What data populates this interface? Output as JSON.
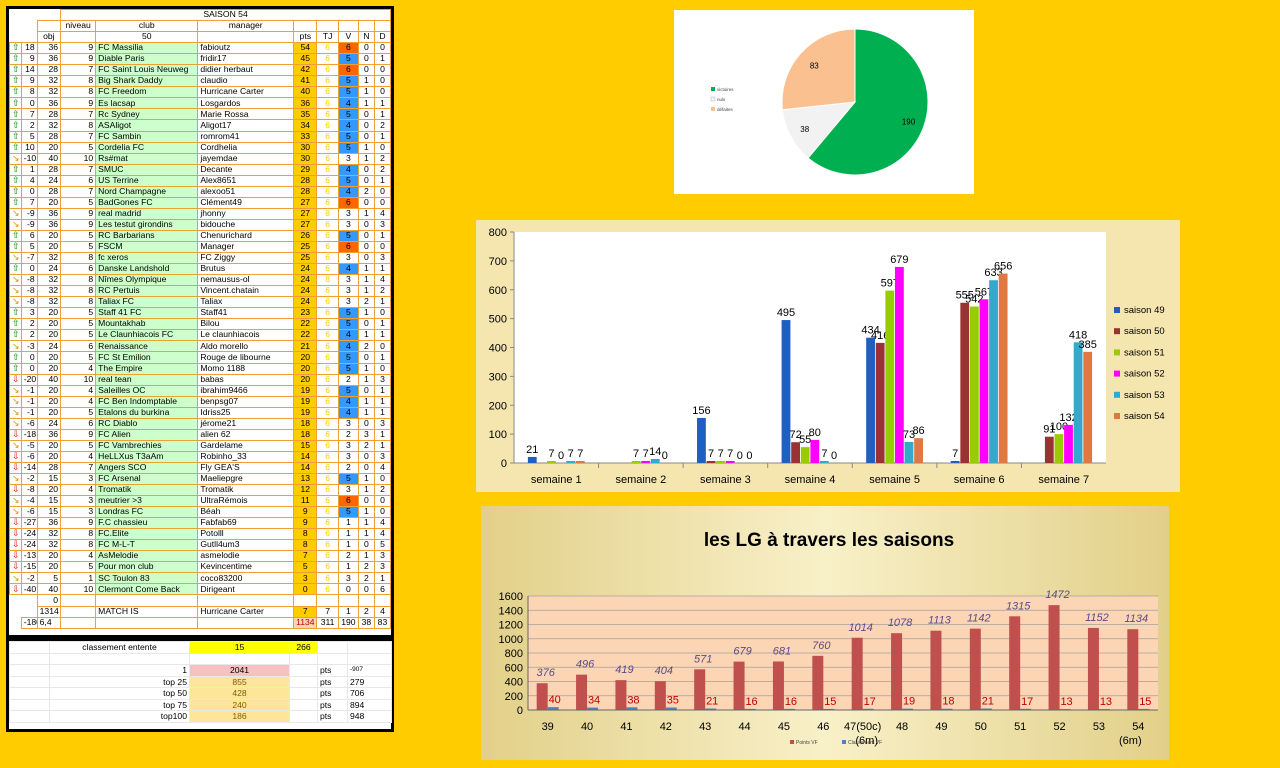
{
  "league": {
    "title": "SAISON 54",
    "header1": [
      "niveau",
      "club",
      "manager"
    ],
    "header2": {
      "obj": "obj",
      "club_count": "50",
      "pts": "pts",
      "tj": "TJ",
      "v": "V",
      "n": "N",
      "d": "D"
    },
    "rows": [
      {
        "t": "up",
        "e": "18",
        "obj": "36",
        "niv": "9",
        "club": "FC Massilia",
        "mgr": "fabioutz",
        "pts": "54",
        "tj": "6",
        "v": "6",
        "vc": "orange",
        "n": "0",
        "d": "0"
      },
      {
        "t": "up",
        "e": "9",
        "obj": "36",
        "niv": "9",
        "club": "Diable Paris",
        "mgr": "fridir17",
        "pts": "45",
        "tj": "6",
        "v": "5",
        "vc": "blue",
        "n": "0",
        "d": "1"
      },
      {
        "t": "up",
        "e": "14",
        "obj": "28",
        "niv": "7",
        "club": "FC Saint Louis Neuweg",
        "mgr": "didier herbaut",
        "pts": "42",
        "tj": "6",
        "v": "6",
        "vc": "orange",
        "n": "0",
        "d": "0"
      },
      {
        "t": "up",
        "e": "9",
        "obj": "32",
        "niv": "8",
        "club": "Big Shark Daddy",
        "mgr": "claudio",
        "pts": "41",
        "tj": "6",
        "v": "5",
        "vc": "blue",
        "n": "1",
        "d": "0"
      },
      {
        "t": "up",
        "e": "8",
        "obj": "32",
        "niv": "8",
        "club": "FC Freedom",
        "mgr": "Hurricane Carter",
        "pts": "40",
        "tj": "6",
        "v": "5",
        "vc": "blue",
        "n": "1",
        "d": "0"
      },
      {
        "t": "up",
        "e": "0",
        "obj": "36",
        "niv": "9",
        "club": "Es lacsap",
        "mgr": "Losgardos",
        "pts": "36",
        "tj": "6",
        "v": "4",
        "vc": "blue",
        "n": "1",
        "d": "1"
      },
      {
        "t": "up",
        "e": "7",
        "obj": "28",
        "niv": "7",
        "club": "Rc Sydney",
        "mgr": "Marie Rossa",
        "pts": "35",
        "tj": "6",
        "v": "5",
        "vc": "blue",
        "n": "0",
        "d": "1"
      },
      {
        "t": "up",
        "e": "2",
        "obj": "32",
        "niv": "8",
        "club": "ASAligot",
        "mgr": "Aligot17",
        "pts": "34",
        "tj": "6",
        "v": "4",
        "vc": "blue",
        "n": "0",
        "d": "2"
      },
      {
        "t": "up",
        "e": "5",
        "obj": "28",
        "niv": "7",
        "club": "FC Sambin",
        "mgr": "romrom41",
        "pts": "33",
        "tj": "6",
        "v": "5",
        "vc": "blue",
        "n": "0",
        "d": "1"
      },
      {
        "t": "up",
        "e": "10",
        "obj": "20",
        "niv": "5",
        "club": "Cordelia FC",
        "mgr": "Cordhelia",
        "pts": "30",
        "tj": "6",
        "v": "5",
        "vc": "blue",
        "n": "1",
        "d": "0"
      },
      {
        "t": "diag",
        "e": "-10",
        "obj": "40",
        "niv": "10",
        "club": "Rs#mat",
        "mgr": "jayemdae",
        "pts": "30",
        "tj": "6",
        "v": "3",
        "vc": "",
        "n": "1",
        "d": "2"
      },
      {
        "t": "up",
        "e": "1",
        "obj": "28",
        "niv": "7",
        "club": "SMUC",
        "mgr": "Decante",
        "pts": "29",
        "tj": "6",
        "v": "4",
        "vc": "blue",
        "n": "0",
        "d": "2"
      },
      {
        "t": "up",
        "e": "4",
        "obj": "24",
        "niv": "6",
        "club": "US Terrine",
        "mgr": "Alex8651",
        "pts": "28",
        "tj": "6",
        "v": "5",
        "vc": "blue",
        "n": "0",
        "d": "1"
      },
      {
        "t": "up",
        "e": "0",
        "obj": "28",
        "niv": "7",
        "club": "Nord Champagne",
        "mgr": "alexoo51",
        "pts": "28",
        "tj": "6",
        "v": "4",
        "vc": "blue",
        "n": "2",
        "d": "0"
      },
      {
        "t": "up",
        "e": "7",
        "obj": "20",
        "niv": "5",
        "club": "BadGones FC",
        "mgr": "Clément49",
        "pts": "27",
        "tj": "6",
        "v": "6",
        "vc": "orange",
        "n": "0",
        "d": "0"
      },
      {
        "t": "diag",
        "e": "-9",
        "obj": "36",
        "niv": "9",
        "club": "real madrid",
        "mgr": "jhonny",
        "pts": "27",
        "tj": "8",
        "v": "3",
        "vc": "",
        "n": "1",
        "d": "4"
      },
      {
        "t": "diag",
        "e": "-9",
        "obj": "36",
        "niv": "9",
        "club": "Les testut girondins",
        "mgr": "bidouche",
        "pts": "27",
        "tj": "6",
        "v": "3",
        "vc": "",
        "n": "0",
        "d": "3"
      },
      {
        "t": "up",
        "e": "6",
        "obj": "20",
        "niv": "5",
        "club": "RC Barbarians",
        "mgr": "Chenurichard",
        "pts": "26",
        "tj": "6",
        "v": "5",
        "vc": "blue",
        "n": "0",
        "d": "1"
      },
      {
        "t": "up",
        "e": "5",
        "obj": "20",
        "niv": "5",
        "club": "FSCM",
        "mgr": "Manager",
        "pts": "25",
        "tj": "6",
        "v": "6",
        "vc": "orange",
        "n": "0",
        "d": "0"
      },
      {
        "t": "diag",
        "e": "-7",
        "obj": "32",
        "niv": "8",
        "club": "fc xeros",
        "mgr": "FC Ziggy",
        "pts": "25",
        "tj": "6",
        "v": "3",
        "vc": "",
        "n": "0",
        "d": "3"
      },
      {
        "t": "up",
        "e": "0",
        "obj": "24",
        "niv": "6",
        "club": "Danske Landshold",
        "mgr": "Brutus",
        "pts": "24",
        "tj": "6",
        "v": "4",
        "vc": "blue",
        "n": "1",
        "d": "1"
      },
      {
        "t": "diag",
        "e": "-8",
        "obj": "32",
        "niv": "8",
        "club": "Nîmes Olympique",
        "mgr": "nemausus-ol",
        "pts": "24",
        "tj": "8",
        "v": "3",
        "vc": "",
        "n": "1",
        "d": "4"
      },
      {
        "t": "diag",
        "e": "-8",
        "obj": "32",
        "niv": "8",
        "club": "RC Pertuis",
        "mgr": "Vincent.chatain",
        "pts": "24",
        "tj": "6",
        "v": "3",
        "vc": "",
        "n": "1",
        "d": "2"
      },
      {
        "t": "diag",
        "e": "-8",
        "obj": "32",
        "niv": "8",
        "club": "Taliax FC",
        "mgr": "Taliax",
        "pts": "24",
        "tj": "6",
        "v": "3",
        "vc": "",
        "n": "2",
        "d": "1"
      },
      {
        "t": "up",
        "e": "3",
        "obj": "20",
        "niv": "5",
        "club": "Staff 41 FC",
        "mgr": "Staff41",
        "pts": "23",
        "tj": "6",
        "v": "5",
        "vc": "blue",
        "n": "1",
        "d": "0"
      },
      {
        "t": "up",
        "e": "2",
        "obj": "20",
        "niv": "5",
        "club": "Mountakhab",
        "mgr": "Bilou",
        "pts": "22",
        "tj": "6",
        "v": "5",
        "vc": "blue",
        "n": "0",
        "d": "1"
      },
      {
        "t": "up",
        "e": "2",
        "obj": "20",
        "niv": "5",
        "club": "Le Claunhiacois FC",
        "mgr": "Le claunhiacois",
        "pts": "22",
        "tj": "6",
        "v": "4",
        "vc": "blue",
        "n": "1",
        "d": "1"
      },
      {
        "t": "diag",
        "e": "-3",
        "obj": "24",
        "niv": "6",
        "club": "Renaissance",
        "mgr": "Aldo morello",
        "pts": "21",
        "tj": "6",
        "v": "4",
        "vc": "blue",
        "n": "2",
        "d": "0"
      },
      {
        "t": "up",
        "e": "0",
        "obj": "20",
        "niv": "5",
        "club": "FC St Emilion",
        "mgr": "Rouge de libourne",
        "pts": "20",
        "tj": "6",
        "v": "5",
        "vc": "blue",
        "n": "0",
        "d": "1"
      },
      {
        "t": "up",
        "e": "0",
        "obj": "20",
        "niv": "4",
        "club": "The Empire",
        "mgr": "Momo 1188",
        "pts": "20",
        "tj": "6",
        "v": "5",
        "vc": "blue",
        "n": "1",
        "d": "0"
      },
      {
        "t": "down",
        "e": "-20",
        "obj": "40",
        "niv": "10",
        "club": "real tean",
        "mgr": "babas",
        "pts": "20",
        "tj": "6",
        "v": "2",
        "vc": "",
        "n": "1",
        "d": "3"
      },
      {
        "t": "diag",
        "e": "-1",
        "obj": "20",
        "niv": "4",
        "club": "Saleilles OC",
        "mgr": "ibrahim9466",
        "pts": "19",
        "tj": "6",
        "v": "5",
        "vc": "blue",
        "n": "0",
        "d": "1"
      },
      {
        "t": "diag",
        "e": "-1",
        "obj": "20",
        "niv": "4",
        "club": "FC Ben Indomptable",
        "mgr": "benpsg07",
        "pts": "19",
        "tj": "6",
        "v": "4",
        "vc": "blue",
        "n": "1",
        "d": "1"
      },
      {
        "t": "diag",
        "e": "-1",
        "obj": "20",
        "niv": "5",
        "club": "Etalons du burkina",
        "mgr": "Idriss25",
        "pts": "19",
        "tj": "6",
        "v": "4",
        "vc": "blue",
        "n": "1",
        "d": "1"
      },
      {
        "t": "diag",
        "e": "-6",
        "obj": "24",
        "niv": "6",
        "club": "RC Diablo",
        "mgr": "jérome21",
        "pts": "18",
        "tj": "6",
        "v": "3",
        "vc": "",
        "n": "0",
        "d": "3"
      },
      {
        "t": "down",
        "e": "-18",
        "obj": "36",
        "niv": "9",
        "club": "FC Alien",
        "mgr": "alien 62",
        "pts": "18",
        "tj": "6",
        "v": "2",
        "vc": "",
        "n": "3",
        "d": "1"
      },
      {
        "t": "diag",
        "e": "-5",
        "obj": "20",
        "niv": "5",
        "club": "FC Vambrechies",
        "mgr": "Gardelame",
        "pts": "15",
        "tj": "6",
        "v": "3",
        "vc": "",
        "n": "2",
        "d": "1"
      },
      {
        "t": "down",
        "e": "-6",
        "obj": "20",
        "niv": "4",
        "club": "HeLLXus T3aAm",
        "mgr": "Robinho_33",
        "pts": "14",
        "tj": "6",
        "v": "3",
        "vc": "",
        "n": "0",
        "d": "3"
      },
      {
        "t": "down",
        "e": "-14",
        "obj": "28",
        "niv": "7",
        "club": "Angers SCO",
        "mgr": "Fly GEA'S",
        "pts": "14",
        "tj": "6",
        "v": "2",
        "vc": "",
        "n": "0",
        "d": "4"
      },
      {
        "t": "diag",
        "e": "-2",
        "obj": "15",
        "niv": "3",
        "club": "FC Arsenal",
        "mgr": "Maeliepgre",
        "pts": "13",
        "tj": "6",
        "v": "5",
        "vc": "blue",
        "n": "1",
        "d": "0"
      },
      {
        "t": "down",
        "e": "-8",
        "obj": "20",
        "niv": "4",
        "club": "Tromatik",
        "mgr": "Tromatik",
        "pts": "12",
        "tj": "6",
        "v": "3",
        "vc": "",
        "n": "1",
        "d": "2"
      },
      {
        "t": "diag",
        "e": "-4",
        "obj": "15",
        "niv": "3",
        "club": "meutrier >3",
        "mgr": "UltraRémois",
        "pts": "11",
        "tj": "6",
        "v": "6",
        "vc": "orange",
        "n": "0",
        "d": "0"
      },
      {
        "t": "diag",
        "e": "-6",
        "obj": "15",
        "niv": "3",
        "club": "Londras FC",
        "mgr": "Béah",
        "pts": "9",
        "tj": "6",
        "v": "5",
        "vc": "blue",
        "n": "1",
        "d": "0"
      },
      {
        "t": "down",
        "e": "-27",
        "obj": "36",
        "niv": "9",
        "club": "F.C chassieu",
        "mgr": "Fabfab69",
        "pts": "9",
        "tj": "6",
        "v": "1",
        "vc": "",
        "n": "1",
        "d": "4"
      },
      {
        "t": "down",
        "e": "-24",
        "obj": "32",
        "niv": "8",
        "club": "FC.Elite",
        "mgr": "Potolll",
        "pts": "8",
        "tj": "6",
        "v": "1",
        "vc": "",
        "n": "1",
        "d": "4"
      },
      {
        "t": "down",
        "e": "-24",
        "obj": "32",
        "niv": "8",
        "club": "FC M-L-T",
        "mgr": "Gutll4um3",
        "pts": "8",
        "tj": "6",
        "v": "1",
        "vc": "",
        "n": "0",
        "d": "5"
      },
      {
        "t": "down",
        "e": "-13",
        "obj": "20",
        "niv": "4",
        "club": "AsMelodie",
        "mgr": "asmelodie",
        "pts": "7",
        "tj": "6",
        "v": "2",
        "vc": "",
        "n": "1",
        "d": "3"
      },
      {
        "t": "down",
        "e": "-15",
        "obj": "20",
        "niv": "5",
        "club": "Pour mon club",
        "mgr": "Kevincentime",
        "pts": "5",
        "tj": "6",
        "v": "1",
        "vc": "",
        "n": "2",
        "d": "3"
      },
      {
        "t": "diag",
        "e": "-2",
        "obj": "5",
        "niv": "1",
        "club": "SC Toulon 83",
        "mgr": "coco83200",
        "pts": "3",
        "tj": "6",
        "v": "3",
        "vc": "",
        "n": "2",
        "d": "1"
      },
      {
        "t": "down",
        "e": "-40",
        "obj": "40",
        "niv": "10",
        "club": "Clermont Come Back",
        "mgr": "Dirigeant",
        "pts": "0",
        "tj": "6",
        "v": "0",
        "vc": "",
        "n": "0",
        "d": "6"
      }
    ],
    "zero_obj": "0",
    "match_row": {
      "obj": "1314",
      "club": "MATCH IS",
      "mgr": "Hurricane Carter",
      "pts": "7",
      "tj": "7",
      "v": "1",
      "n": "2",
      "d": "4"
    },
    "total_row": {
      "e": "-180",
      "obj": "6,4",
      "pts": "1134",
      "tj": "311",
      "v": "190",
      "n": "38",
      "d": "83"
    }
  },
  "summary": {
    "label": "classement entente",
    "v1": "15",
    "v2": "266",
    "rows": [
      {
        "rank": "1",
        "pts": "2041",
        "unit": "pts",
        "diff": "-907"
      },
      {
        "rank": "top 25",
        "pts": "855",
        "unit": "pts",
        "diff": "279"
      },
      {
        "rank": "top 50",
        "pts": "428",
        "unit": "pts",
        "diff": "706"
      },
      {
        "rank": "top 75",
        "pts": "240",
        "unit": "pts",
        "diff": "894"
      },
      {
        "rank": "top100",
        "pts": "186",
        "unit": "pts",
        "diff": "948"
      }
    ]
  },
  "colors": {
    "background": "#ffcc00",
    "pie": [
      "#00b050",
      "#f2f2f2",
      "#fac090"
    ],
    "series": [
      "#1f5fbf",
      "#993333",
      "#99cc00",
      "#ff00ff",
      "#33aacc",
      "#e07840"
    ],
    "lg_red": "#c0504d",
    "lg_blue": "#4f81bd"
  },
  "chart_data": [
    {
      "type": "pie",
      "labels": [
        "victoires",
        "nuls",
        "défaites"
      ],
      "values": [
        190,
        38,
        83
      ],
      "legend": "left"
    },
    {
      "type": "bar",
      "categories": [
        "semaine 1",
        "semaine 2",
        "semaine 3",
        "semaine 4",
        "semaine 5",
        "semaine 6",
        "semaine 7"
      ],
      "series": [
        {
          "name": "saison 49",
          "values": [
            21,
            null,
            156,
            495,
            434,
            7,
            null
          ]
        },
        {
          "name": "saison 50",
          "values": [
            null,
            null,
            7,
            72,
            416,
            555,
            91
          ]
        },
        {
          "name": "saison 51",
          "values": [
            7,
            7,
            7,
            55,
            597,
            542,
            100
          ]
        },
        {
          "name": "saison 52",
          "values": [
            0,
            7,
            7,
            80,
            679,
            567,
            132
          ]
        },
        {
          "name": "saison 53",
          "values": [
            7,
            14,
            0,
            7,
            73,
            633,
            418
          ]
        },
        {
          "name": "saison 54",
          "values": [
            7,
            0,
            0,
            0,
            86,
            656,
            385
          ]
        }
      ],
      "ylim": [
        0,
        800
      ],
      "yticks": [
        0,
        100,
        200,
        300,
        400,
        500,
        600,
        700,
        800
      ],
      "legend": "right",
      "grid": false
    },
    {
      "type": "bar",
      "title": "les LG à travers les saisons",
      "categories": [
        "39",
        "40",
        "41",
        "42",
        "43",
        "44",
        "45",
        "46",
        "47(50c)",
        "48",
        "49",
        "50",
        "51",
        "52",
        "53",
        "54"
      ],
      "category_notes": {
        "8": "(6m)",
        "15": "(6m)"
      },
      "series": [
        {
          "name": "Points VF",
          "values": [
            376,
            496,
            419,
            404,
            571,
            679,
            681,
            760,
            1014,
            1078,
            1113,
            1142,
            1315,
            1472,
            1152,
            1134
          ]
        },
        {
          "name": "Classement VF",
          "values": [
            40,
            34,
            38,
            35,
            21,
            16,
            16,
            15,
            17,
            19,
            18,
            21,
            17,
            13,
            13,
            15
          ]
        }
      ],
      "ylim": [
        0,
        1600
      ],
      "yticks": [
        0,
        200,
        400,
        600,
        800,
        1000,
        1200,
        1400,
        1600
      ],
      "legend": "bottom",
      "grid": true
    }
  ]
}
